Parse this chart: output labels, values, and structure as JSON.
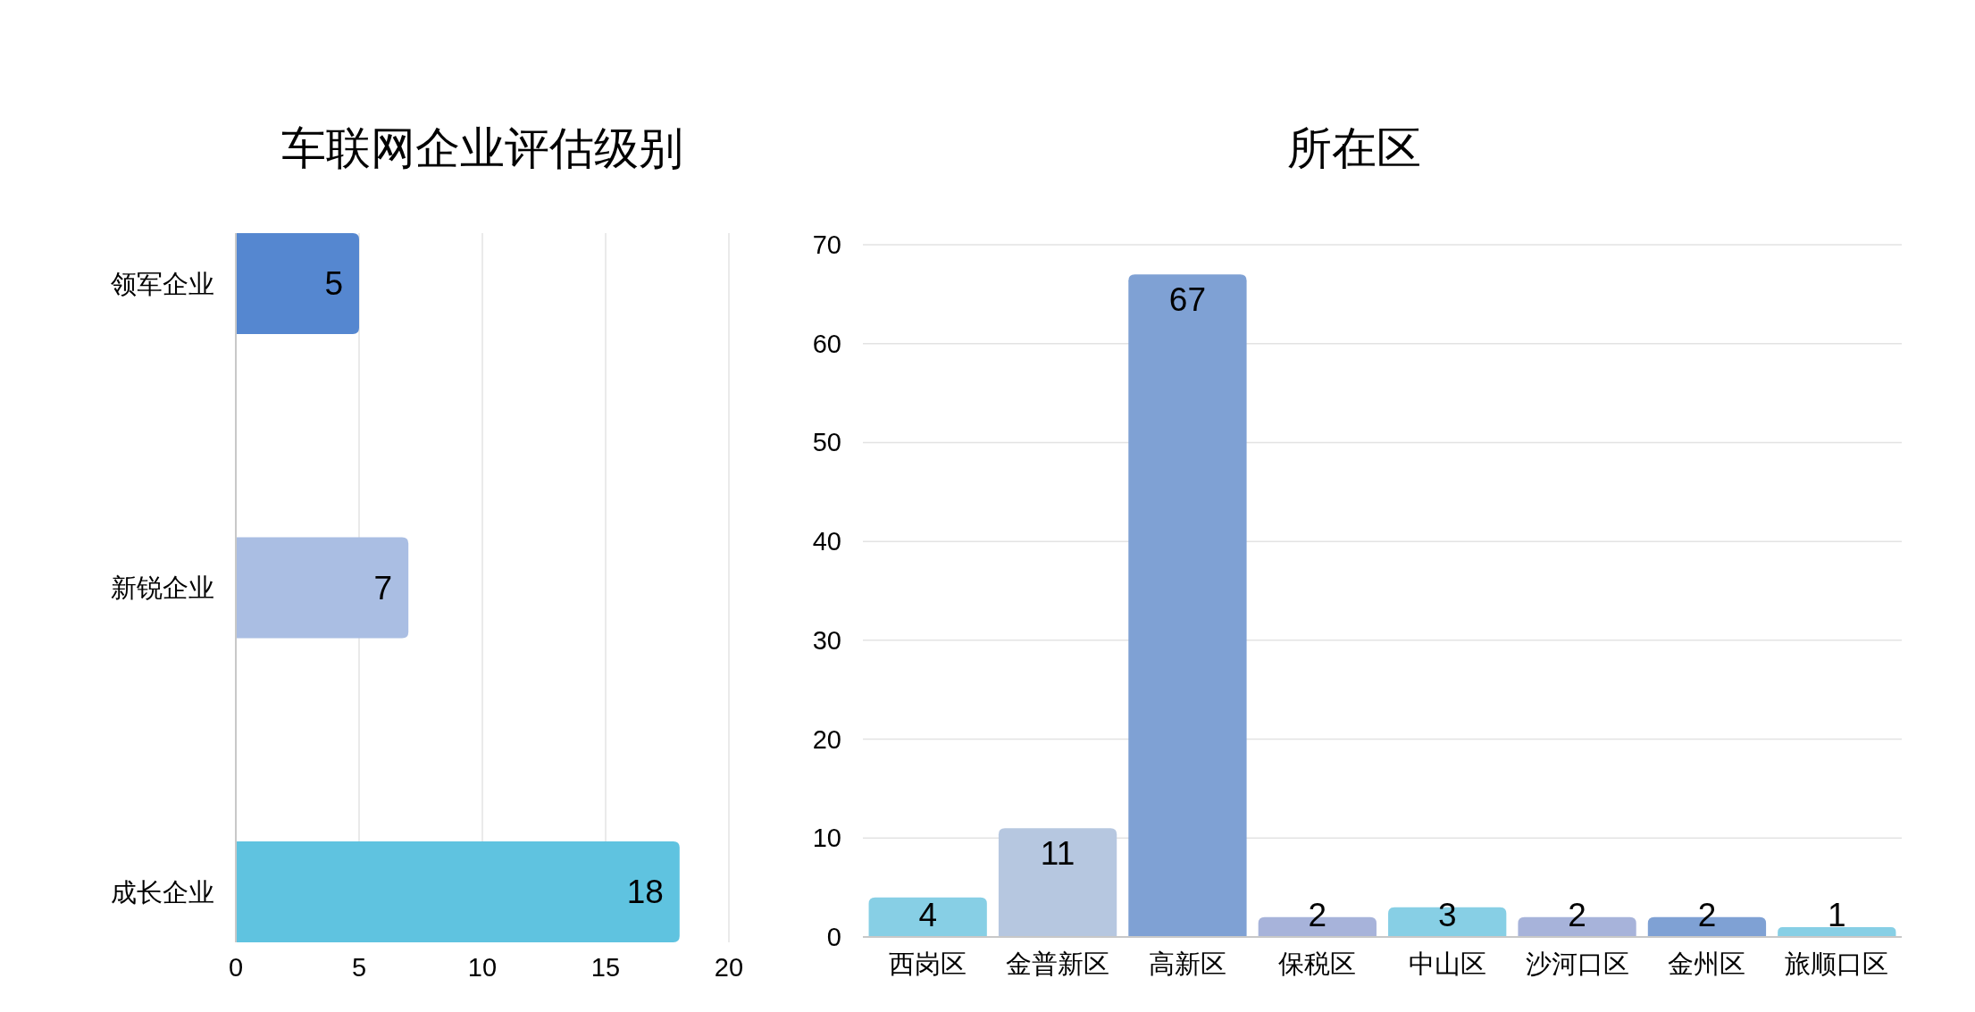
{
  "chart_data": [
    {
      "type": "bar",
      "title": "车联网企业评估级别",
      "orientation": "horizontal",
      "categories": [
        "领军企业",
        "新锐企业",
        "成长企业"
      ],
      "values": [
        5,
        7,
        18
      ],
      "colors": [
        "#5587d0",
        "#aabee3",
        "#5fc3e0"
      ],
      "xlim": [
        0,
        20
      ],
      "xticks": [
        0,
        5,
        10,
        15,
        20
      ],
      "grid": "x",
      "data_labels": true
    },
    {
      "type": "bar",
      "title": "所在区",
      "categories": [
        "西岗区",
        "金普新区",
        "高新区",
        "保税区",
        "中山区",
        "沙河口区",
        "金州区",
        "旅顺口区"
      ],
      "values": [
        4,
        11,
        67,
        2,
        3,
        2,
        2,
        1
      ],
      "colors": [
        "#87cfe5",
        "#b6c7e0",
        "#7fa1d4",
        "#a7b3da",
        "#87cfe5",
        "#a7b3da",
        "#7fa1d4",
        "#87cfe5"
      ],
      "ylim": [
        0,
        70
      ],
      "yticks": [
        0,
        10,
        20,
        30,
        40,
        50,
        60,
        70
      ],
      "grid": "y",
      "data_labels": true
    }
  ]
}
